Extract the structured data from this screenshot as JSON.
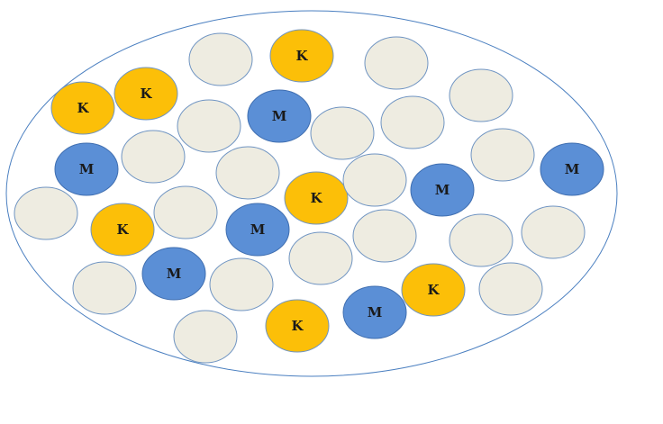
{
  "colors": {
    "background": "#ffffff",
    "container_stroke": "#4a7fc0",
    "beige_fill": "#eeece1",
    "beige_stroke": "#6f94c2",
    "orange_fill": "#fcbf08",
    "orange_stroke": "#6f94c2",
    "blue_fill": "#5b8fd6",
    "blue_stroke": "#3f6eb0"
  },
  "labels": {
    "k": "K",
    "m": "M"
  },
  "circles": [
    {
      "kind": "beige"
    },
    {
      "kind": "orange",
      "label": "K"
    },
    {
      "kind": "beige"
    },
    {
      "kind": "orange",
      "label": "K"
    },
    {
      "kind": "beige"
    },
    {
      "kind": "orange",
      "label": "K"
    },
    {
      "kind": "beige"
    },
    {
      "kind": "blue",
      "label": "M"
    },
    {
      "kind": "beige"
    },
    {
      "kind": "beige"
    },
    {
      "kind": "blue",
      "label": "M"
    },
    {
      "kind": "beige"
    },
    {
      "kind": "beige"
    },
    {
      "kind": "orange",
      "label": "K"
    },
    {
      "kind": "beige"
    },
    {
      "kind": "blue",
      "label": "M"
    },
    {
      "kind": "beige"
    },
    {
      "kind": "blue",
      "label": "M"
    },
    {
      "kind": "beige"
    },
    {
      "kind": "orange",
      "label": "K"
    },
    {
      "kind": "beige"
    },
    {
      "kind": "blue",
      "label": "M"
    },
    {
      "kind": "beige"
    },
    {
      "kind": "beige"
    },
    {
      "kind": "beige"
    },
    {
      "kind": "beige"
    },
    {
      "kind": "beige"
    },
    {
      "kind": "blue",
      "label": "M"
    },
    {
      "kind": "beige"
    },
    {
      "kind": "orange",
      "label": "K"
    },
    {
      "kind": "beige"
    },
    {
      "kind": "beige"
    },
    {
      "kind": "orange",
      "label": "K"
    },
    {
      "kind": "blue",
      "label": "M"
    }
  ]
}
